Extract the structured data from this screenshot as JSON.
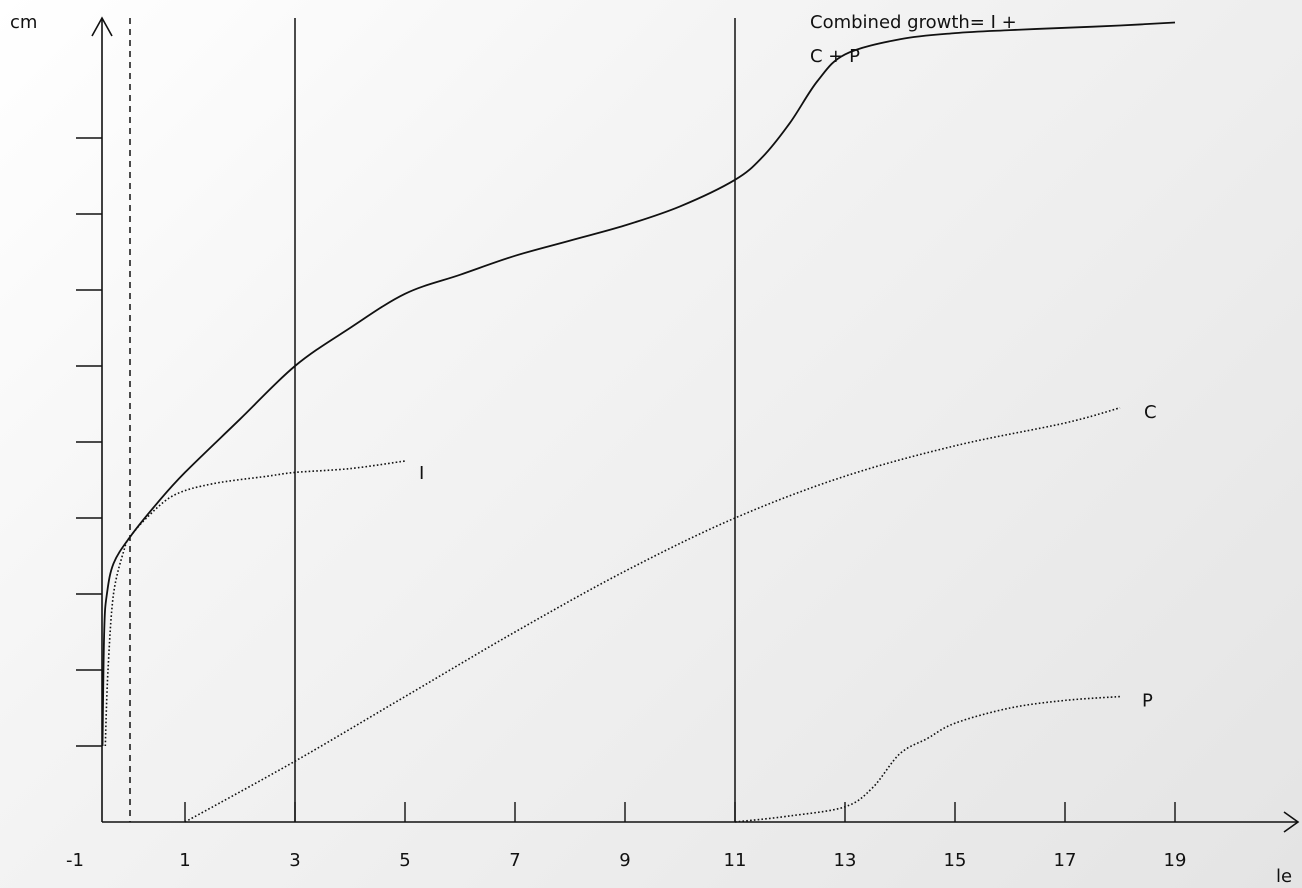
{
  "chart_data": {
    "type": "line",
    "ylabel": "cm",
    "xlabel": "le",
    "xlim": [
      -1,
      21
    ],
    "ylim": [
      0,
      10
    ],
    "x_ticks": [
      -1,
      1,
      3,
      5,
      7,
      9,
      11,
      13,
      15,
      17,
      19
    ],
    "y_ticks": [
      1,
      2,
      3,
      4,
      5,
      6,
      7,
      8,
      9
    ],
    "reference_lines": [
      {
        "x": 0,
        "style": "dashed"
      },
      {
        "x": 3,
        "style": "solid"
      },
      {
        "x": 11,
        "style": "solid"
      }
    ],
    "annotation": {
      "lines": [
        "Combined growth= I +",
        "C + P"
      ]
    },
    "series": [
      {
        "name": "",
        "style": "solid",
        "x": [
          -0.5,
          -0.47,
          -0.42,
          -0.3,
          0.0,
          0.5,
          1.0,
          2.0,
          3.0,
          4.0,
          5.0,
          6.0,
          7.0,
          8.0,
          9.0,
          10.0,
          11.0,
          11.5,
          12.0,
          12.5,
          13.0,
          14.0,
          15.0,
          16.0,
          17.0,
          18.0,
          19.0
        ],
        "y": [
          1.0,
          2.5,
          3.0,
          3.4,
          3.75,
          4.2,
          4.6,
          5.3,
          6.0,
          6.5,
          6.95,
          7.2,
          7.45,
          7.65,
          7.85,
          8.1,
          8.45,
          8.75,
          9.2,
          9.75,
          10.1,
          10.3,
          10.38,
          10.42,
          10.45,
          10.48,
          10.52
        ]
      },
      {
        "name": "I",
        "style": "dotted",
        "x": [
          -0.45,
          -0.4,
          -0.3,
          -0.1,
          0.0,
          0.3,
          0.8,
          1.5,
          2.5,
          3.0,
          4.0,
          5.0
        ],
        "y": [
          1.0,
          2.0,
          3.0,
          3.6,
          3.75,
          4.0,
          4.3,
          4.45,
          4.55,
          4.6,
          4.65,
          4.75
        ]
      },
      {
        "name": "C",
        "style": "dotted",
        "x": [
          1.0,
          3.0,
          5.0,
          7.0,
          9.0,
          11.0,
          13.0,
          15.0,
          17.0,
          18.0
        ],
        "y": [
          0.0,
          0.8,
          1.65,
          2.5,
          3.3,
          4.0,
          4.55,
          4.95,
          5.25,
          5.45
        ]
      },
      {
        "name": "P",
        "style": "dotted",
        "x": [
          11.0,
          12.0,
          13.0,
          13.5,
          14.0,
          14.5,
          15.0,
          16.0,
          17.0,
          18.0
        ],
        "y": [
          0.0,
          0.08,
          0.2,
          0.45,
          0.9,
          1.1,
          1.3,
          1.5,
          1.6,
          1.65
        ]
      }
    ],
    "series_labels": [
      "I",
      "C",
      "P"
    ]
  }
}
